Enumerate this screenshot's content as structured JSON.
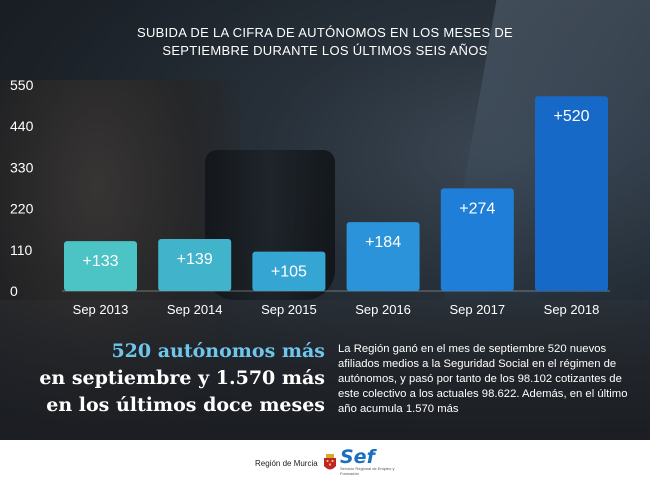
{
  "chart_data": {
    "type": "bar",
    "title": "SUBIDA DE LA CIFRA DE AUTÓNOMOS EN LOS MESES DE SEPTIEMBRE DURANTE LOS ÚLTIMOS SEIS AÑOS",
    "title_lines": [
      "SUBIDA DE LA CIFRA DE AUTÓNOMOS EN LOS MESES DE",
      "SEPTIEMBRE DURANTE LOS ÚLTIMOS SEIS AÑOS"
    ],
    "categories": [
      "Sep 2013",
      "Sep 2014",
      "Sep 2015",
      "Sep 2016",
      "Sep 2017",
      "Sep 2018"
    ],
    "values": [
      133,
      139,
      105,
      184,
      274,
      520
    ],
    "data_labels": [
      "+133",
      "+139",
      "+105",
      "+184",
      "+274",
      "+520"
    ],
    "bar_colors": [
      "#4cc3c4",
      "#41b3cb",
      "#35a5d4",
      "#2a93d9",
      "#1f7fd8",
      "#1769c8"
    ],
    "yticks": [
      0,
      110,
      220,
      330,
      440,
      550
    ],
    "ylim": [
      0,
      550
    ],
    "grid": false,
    "xlabel": "",
    "ylabel": ""
  },
  "headline": {
    "line1": "520 autónomos más",
    "line2": "en septiembre y 1.570 más",
    "line3": "en los últimos doce meses"
  },
  "body": "La Región ganó en el mes de septiembre 520 nuevos afiliados medios a la Seguridad Social en el régimen de autónomos, y pasó por tanto de los 98.102 cotizantes de este colectivo a los actuales 98.622. Además, en el último año acumula 1.570 más",
  "footer": {
    "logo_region_text": "Región de Murcia",
    "logo_sef_text": "Sef",
    "logo_sef_subtext": "Servicio Regional de Empleo y Formación"
  },
  "colors": {
    "headline_accent": "#6fc6ec",
    "footer_bg": "#ffffff"
  }
}
